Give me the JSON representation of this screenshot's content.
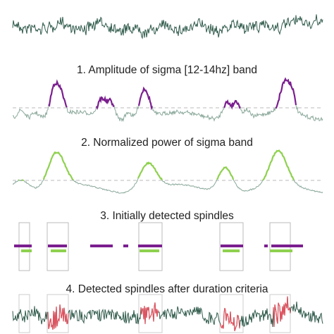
{
  "panels": [
    {
      "title": "1. Amplitude of sigma [12-14hz] band"
    },
    {
      "title": "2. Normalized power of sigma band"
    },
    {
      "title": "3. Initially detected spindles"
    },
    {
      "title": "4. Detected spindles after duration criteria"
    }
  ]
}
